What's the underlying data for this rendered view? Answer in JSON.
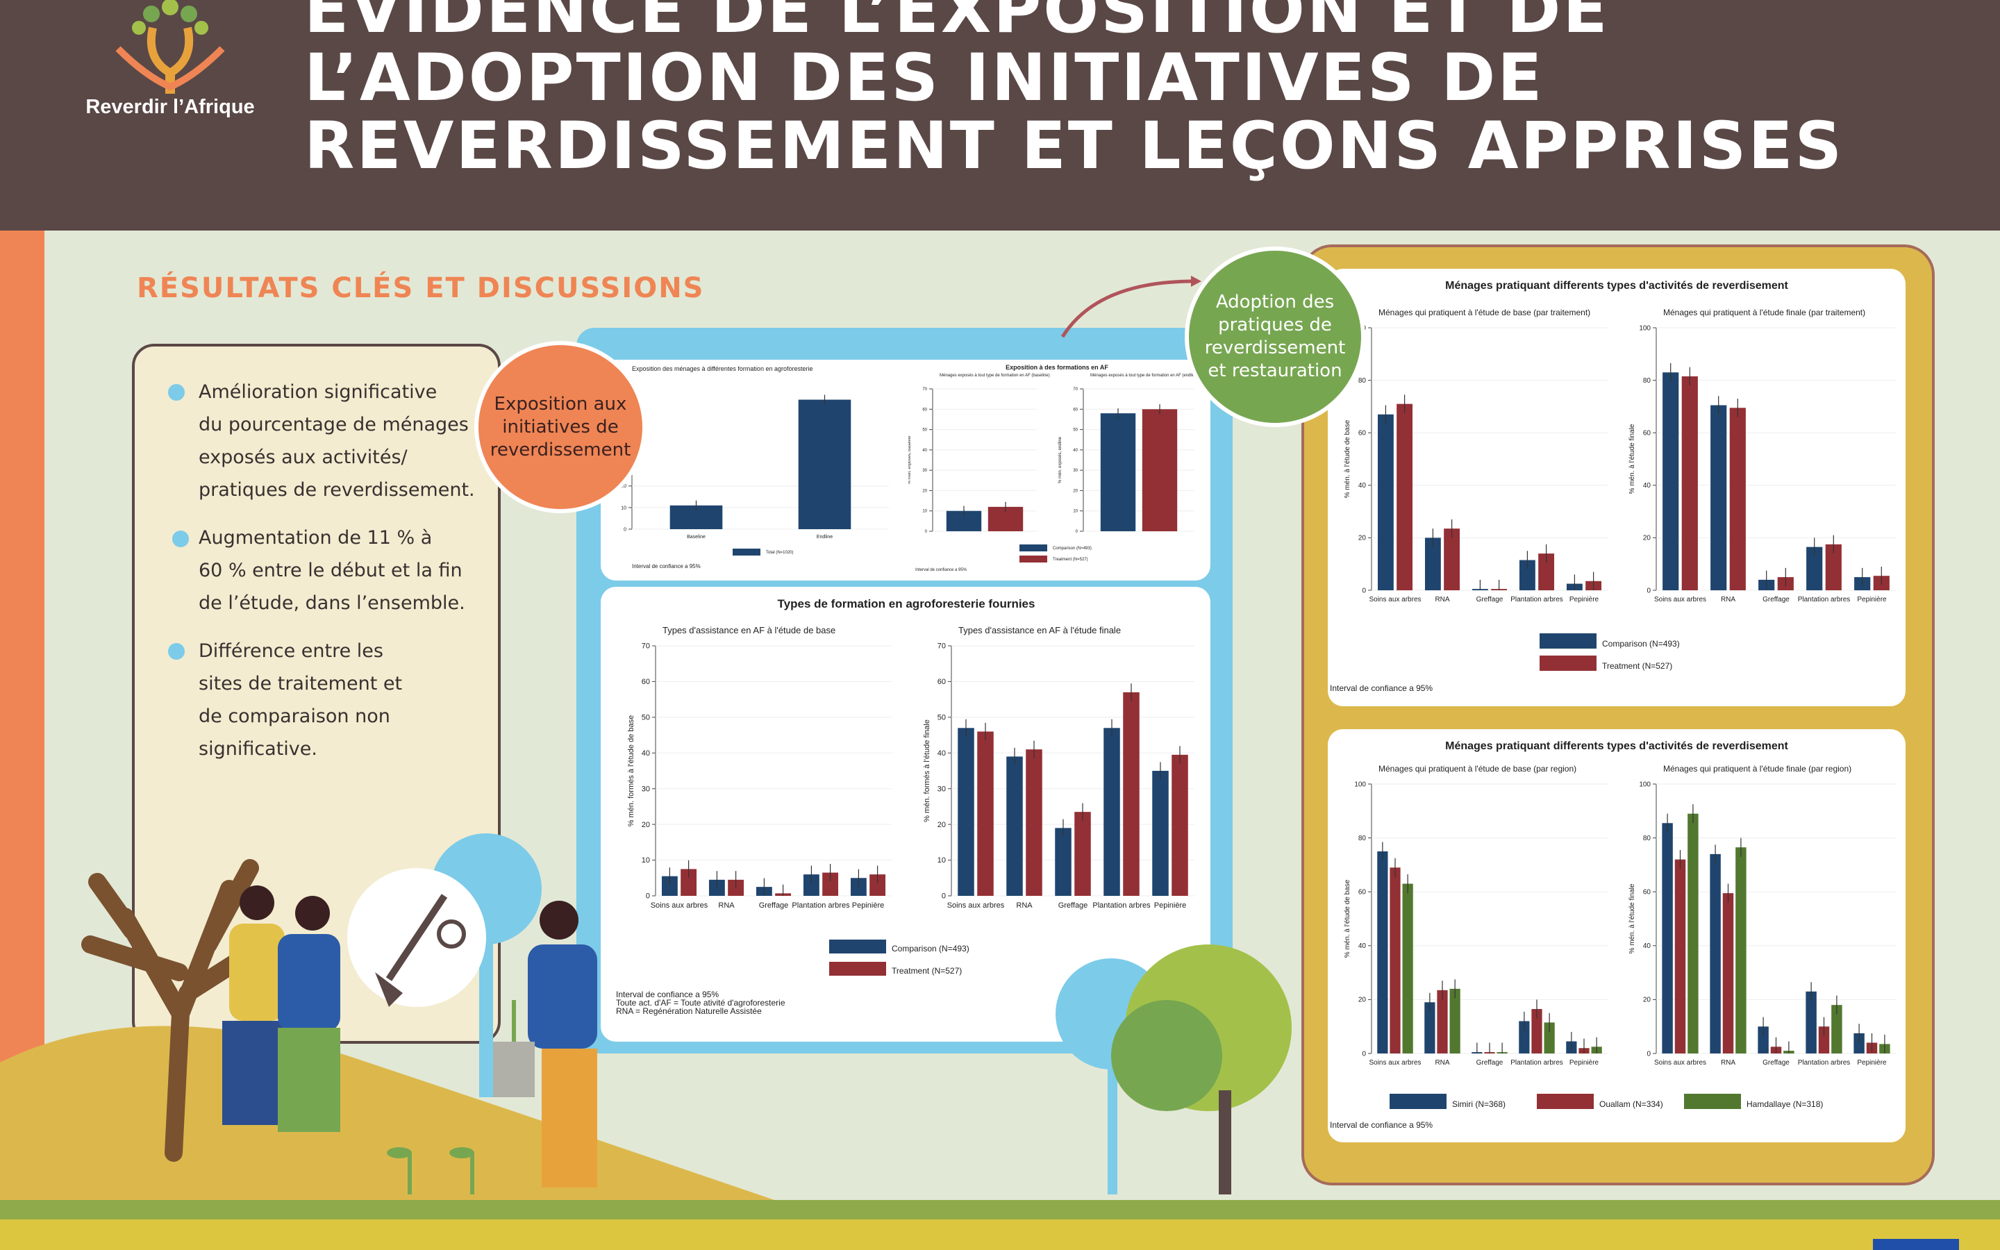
{
  "header": {
    "title_lines": [
      "ÉVIDENCE DE L’EXPOSITION ET DE",
      "L’ADOPTION DES INITIATIVES DE",
      "REVERDISSEMENT ET LEÇONS APPRISES"
    ],
    "logo_text": "Reverdir l’Afrique"
  },
  "section_title": "RÉSULTATS CLÉS ET DISCUSSIONS",
  "bullets": [
    [
      "Amélioration significative",
      "du pourcentage de ménages",
      "exposés aux activités/",
      "pratiques de reverdissement."
    ],
    [
      "Augmentation de 11 % à",
      "60 % entre le début et la fin",
      "de l’étude, dans l’ensemble."
    ],
    [
      "Différence entre les",
      "sites de traitement et",
      "de comparaison non",
      "significative."
    ]
  ],
  "circles": {
    "exposure": [
      "Exposition aux",
      "initiatives de",
      "reverdissement"
    ],
    "adoption": [
      "Adoption des",
      "pratiques de",
      "reverdissement",
      "et restauration"
    ]
  },
  "colors": {
    "comparison": "#1f456e",
    "treatment": "#933035",
    "region3": "#52782f",
    "orange": "#ef8554",
    "blue": "#7ccbe9",
    "gold": "#dcb84c",
    "green": "#77a651"
  },
  "chart_data": [
    {
      "type": "bar",
      "title": "Exposition des ménages à différentes formation en agroforesterie",
      "categories": [
        "Baseline",
        "Endline"
      ],
      "series": [
        {
          "name": "Total (N=1020)",
          "values": [
            11,
            60
          ]
        }
      ],
      "ylim": [
        0,
        65
      ],
      "yticks": [
        0,
        10,
        20
      ],
      "note": "Interval de confiance a 95%"
    },
    {
      "type": "bar",
      "title": "Exposition à des formations en AF",
      "panels": [
        {
          "subtitle": "Ménages exposés à tout type de formation en AF (baseline)",
          "categories": [
            ""
          ],
          "ylim": [
            0,
            70
          ],
          "yticks": [
            0,
            10,
            20,
            30,
            40,
            50,
            60,
            70
          ],
          "ylabel": "% mén. exposés, baseline",
          "series": [
            {
              "name": "Comparison (N=493)",
              "values": [
                10
              ]
            },
            {
              "name": "Treatment (N=527)",
              "values": [
                12
              ]
            }
          ]
        },
        {
          "subtitle": "Ménages exposés à tout type de formation en AF (endline)",
          "categories": [
            ""
          ],
          "ylim": [
            0,
            70
          ],
          "yticks": [
            0,
            10,
            20,
            30,
            40,
            50,
            60,
            70
          ],
          "ylabel": "% mén. exposés, endline",
          "series": [
            {
              "name": "Comparison (N=493)",
              "values": [
                58
              ]
            },
            {
              "name": "Treatment (N=527)",
              "values": [
                60
              ]
            }
          ]
        }
      ],
      "legend": [
        "Comparison (N=493)",
        "Treatment (N=527)"
      ],
      "note": "Interval de confiance a 95%"
    },
    {
      "type": "bar",
      "title": "Types de formation en agroforesterie fournies",
      "panels": [
        {
          "subtitle": "Types d'assistance en AF à l'étude de base",
          "ylabel": "% mén. formés à l'étude de base",
          "ylim": [
            0,
            70
          ],
          "yticks": [
            0,
            10,
            20,
            30,
            40,
            50,
            60,
            70
          ],
          "categories": [
            "Soins aux arbres",
            "RNA",
            "Greffage",
            "Plantation arbres",
            "Pepinière"
          ],
          "series": [
            {
              "name": "Comparison (N=493)",
              "values": [
                5.5,
                4.5,
                2.5,
                6,
                5
              ]
            },
            {
              "name": "Treatment (N=527)",
              "values": [
                7.5,
                4.5,
                0.7,
                6.5,
                6
              ]
            }
          ]
        },
        {
          "subtitle": "Types d'assistance en AF à l'étude finale",
          "ylabel": "% mén. formés à l'étude finale",
          "ylim": [
            0,
            70
          ],
          "yticks": [
            0,
            10,
            20,
            30,
            40,
            50,
            60,
            70
          ],
          "categories": [
            "Soins aux arbres",
            "RNA",
            "Greffage",
            "Plantation arbres",
            "Pepinière"
          ],
          "series": [
            {
              "name": "Comparison (N=493)",
              "values": [
                47,
                39,
                19,
                47,
                35
              ]
            },
            {
              "name": "Treatment (N=527)",
              "values": [
                46,
                41,
                23.5,
                57,
                39.5
              ]
            }
          ]
        }
      ],
      "legend": [
        "Comparison (N=493)",
        "Treatment (N=527)"
      ],
      "notes": [
        "Interval de confiance a 95%",
        "Toute act. d'AF = Toute ativité d'agroforesterie",
        "RNA = Regénération Naturelle Assistée"
      ]
    },
    {
      "type": "bar",
      "title": "Ménages pratiquant differents types d'activités de reverdisement",
      "panels": [
        {
          "subtitle": "Ménages qui pratiquent à l'étude de base (par traitement)",
          "ylabel": "% mén. à l'étude de base",
          "ylim": [
            0,
            100
          ],
          "yticks": [
            0,
            20,
            40,
            60,
            80,
            100
          ],
          "categories": [
            "Soins aux arbres",
            "RNA",
            "Greffage",
            "Plantation arbres",
            "Pepinière"
          ],
          "series": [
            {
              "name": "Comparison (N=493)",
              "values": [
                67,
                20,
                0.5,
                11.5,
                2.5
              ]
            },
            {
              "name": "Treatment (N=527)",
              "values": [
                71,
                23.5,
                0.5,
                14,
                3.5
              ]
            }
          ]
        },
        {
          "subtitle": "Ménages qui pratiquent à l'étude finale (par traitement)",
          "ylabel": "% mén. à l'étude finale",
          "ylim": [
            0,
            100
          ],
          "yticks": [
            0,
            20,
            40,
            60,
            80,
            100
          ],
          "categories": [
            "Soins aux arbres",
            "RNA",
            "Greffage",
            "Plantation arbres",
            "Pepinière"
          ],
          "series": [
            {
              "name": "Comparison (N=493)",
              "values": [
                83,
                70.5,
                4,
                16.5,
                5
              ]
            },
            {
              "name": "Treatment (N=527)",
              "values": [
                81.5,
                69.5,
                5,
                17.5,
                5.5
              ]
            }
          ]
        }
      ],
      "legend": [
        "Comparison (N=493)",
        "Treatment (N=527)"
      ],
      "note": "Interval de confiance a 95%"
    },
    {
      "type": "bar",
      "title": "Ménages pratiquant differents types d'activités de reverdisement",
      "panels": [
        {
          "subtitle": "Ménages qui pratiquent à l'étude de base (par region)",
          "ylabel": "% mén. à l'étude de base",
          "ylim": [
            0,
            100
          ],
          "yticks": [
            0,
            20,
            40,
            60,
            80,
            100
          ],
          "categories": [
            "Soins aux arbres",
            "RNA",
            "Greffage",
            "Plantation arbres",
            "Pepinière"
          ],
          "series": [
            {
              "name": "Simiri (N=368)",
              "values": [
                75,
                19,
                0.5,
                12,
                4.5
              ]
            },
            {
              "name": "Ouallam (N=334)",
              "values": [
                69,
                23.5,
                0.5,
                16.5,
                2
              ]
            },
            {
              "name": "Hamdallaye (N=318)",
              "values": [
                63,
                24,
                0.5,
                11.5,
                2.5
              ]
            }
          ]
        },
        {
          "subtitle": "Ménages qui pratiquent à l'étude finale (par region)",
          "ylabel": "% mén. à l'étude finale",
          "ylim": [
            0,
            100
          ],
          "yticks": [
            0,
            20,
            40,
            60,
            80,
            100
          ],
          "categories": [
            "Soins aux arbres",
            "RNA",
            "Greffage",
            "Plantation arbres",
            "Pepinière"
          ],
          "series": [
            {
              "name": "Simiri (N=368)",
              "values": [
                85.5,
                74,
                10,
                23,
                7.5
              ]
            },
            {
              "name": "Ouallam (N=334)",
              "values": [
                72,
                59.5,
                2.5,
                10,
                4
              ]
            },
            {
              "name": "Hamdallaye (N=318)",
              "values": [
                89,
                76.5,
                1,
                18,
                3.5
              ]
            }
          ]
        }
      ],
      "legend": [
        "Simiri (N=368)",
        "Ouallam (N=334)",
        "Hamdallaye (N=318)"
      ],
      "note": "Interval de confiance a 95%"
    }
  ]
}
